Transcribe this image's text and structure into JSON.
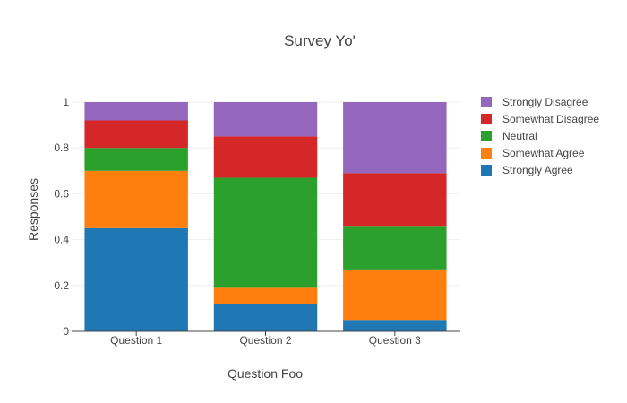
{
  "chart_data": {
    "type": "bar",
    "stacked": true,
    "title": "Survey Yo'",
    "xlabel": "Question Foo",
    "ylabel": "Responses",
    "ylim": [
      0,
      1
    ],
    "yticks": [
      0,
      0.2,
      0.4,
      0.6,
      0.8,
      1
    ],
    "ytick_labels": [
      "0",
      "0.2",
      "0.4",
      "0.6",
      "0.8",
      "1"
    ],
    "categories": [
      "Question 1",
      "Question 2",
      "Question 3"
    ],
    "series": [
      {
        "name": "Strongly Agree",
        "color": "#1f77b4",
        "values": [
          0.45,
          0.12,
          0.05
        ]
      },
      {
        "name": "Somewhat Agree",
        "color": "#ff7f0e",
        "values": [
          0.25,
          0.07,
          0.22
        ]
      },
      {
        "name": "Neutral",
        "color": "#2ca02c",
        "values": [
          0.1,
          0.48,
          0.19
        ]
      },
      {
        "name": "Somewhat Disagree",
        "color": "#d62728",
        "values": [
          0.12,
          0.18,
          0.23
        ]
      },
      {
        "name": "Strongly Disagree",
        "color": "#9467bd",
        "values": [
          0.08,
          0.15,
          0.31
        ]
      }
    ],
    "legend_order": [
      "Strongly Disagree",
      "Somewhat Disagree",
      "Neutral",
      "Somewhat Agree",
      "Strongly Agree"
    ],
    "legend_position": "right",
    "grid": true
  }
}
